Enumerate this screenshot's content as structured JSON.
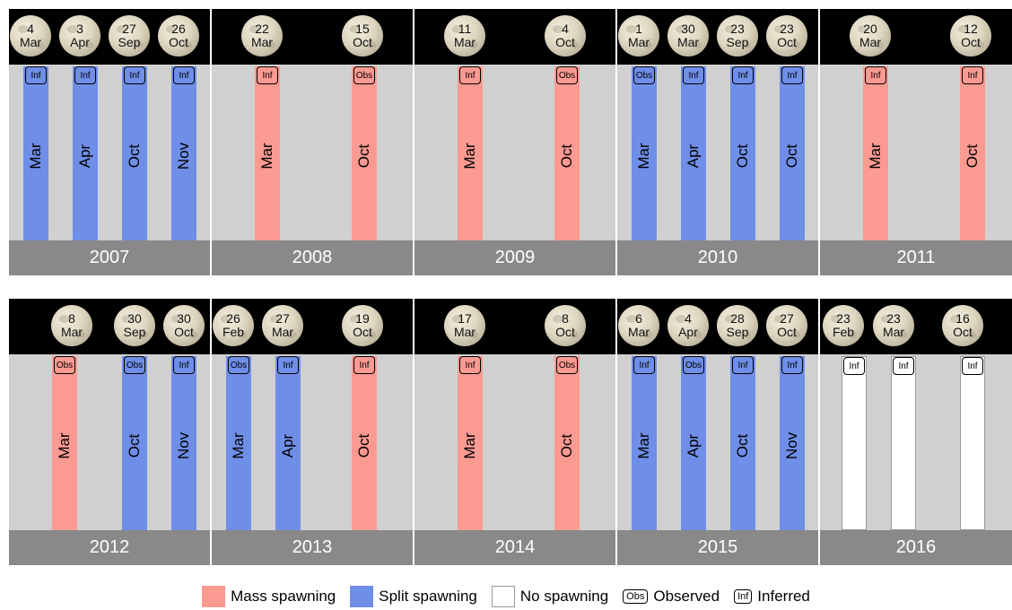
{
  "rows": [
    {
      "panels": [
        {
          "year": "2007",
          "moons": [
            {
              "day": "4",
              "month": "Mar"
            },
            {
              "day": "3",
              "month": "Apr"
            },
            {
              "day": "27",
              "month": "Sep"
            },
            {
              "day": "26",
              "month": "Oct"
            }
          ],
          "bars": [
            {
              "month": "Mar",
              "type": "split",
              "tag": "Inf"
            },
            {
              "month": "Apr",
              "type": "split",
              "tag": "Inf"
            },
            {
              "month": "Oct",
              "type": "split",
              "tag": "Inf"
            },
            {
              "month": "Nov",
              "type": "split",
              "tag": "Inf"
            }
          ]
        },
        {
          "year": "2008",
          "moons": [
            {
              "day": "22",
              "month": "Mar"
            },
            {
              "day": "15",
              "month": "Oct"
            }
          ],
          "bars": [
            {
              "month": "Mar",
              "type": "mass",
              "tag": "Inf"
            },
            {
              "month": "Oct",
              "type": "mass",
              "tag": "Obs"
            }
          ]
        },
        {
          "year": "2009",
          "moons": [
            {
              "day": "11",
              "month": "Mar"
            },
            {
              "day": "4",
              "month": "Oct"
            }
          ],
          "bars": [
            {
              "month": "Mar",
              "type": "mass",
              "tag": "Inf"
            },
            {
              "month": "Oct",
              "type": "mass",
              "tag": "Obs"
            }
          ]
        },
        {
          "year": "2010",
          "moons": [
            {
              "day": "1",
              "month": "Mar"
            },
            {
              "day": "30",
              "month": "Mar"
            },
            {
              "day": "23",
              "month": "Sep"
            },
            {
              "day": "23",
              "month": "Oct"
            }
          ],
          "bars": [
            {
              "month": "Mar",
              "type": "split",
              "tag": "Obs"
            },
            {
              "month": "Apr",
              "type": "split",
              "tag": "Inf"
            },
            {
              "month": "Oct",
              "type": "split",
              "tag": "Inf"
            },
            {
              "month": "Oct",
              "type": "split",
              "tag": "Inf"
            }
          ]
        },
        {
          "year": "2011",
          "moons": [
            {
              "day": "20",
              "month": "Mar"
            },
            {
              "day": "12",
              "month": "Oct"
            }
          ],
          "bars": [
            {
              "month": "Mar",
              "type": "mass",
              "tag": "Inf"
            },
            {
              "month": "Oct",
              "type": "mass",
              "tag": "Inf"
            }
          ]
        }
      ]
    },
    {
      "panels": [
        {
          "year": "2012",
          "moons": [
            {
              "day": "8",
              "month": "Mar"
            },
            {
              "day": "30",
              "month": "Sep"
            },
            {
              "day": "30",
              "month": "Oct"
            }
          ],
          "bars": [
            {
              "month": "Mar",
              "type": "mass",
              "tag": "Obs"
            },
            {
              "month": "Oct",
              "type": "split",
              "tag": "Obs"
            },
            {
              "month": "Nov",
              "type": "split",
              "tag": "Inf"
            }
          ]
        },
        {
          "year": "2013",
          "moons": [
            {
              "day": "26",
              "month": "Feb"
            },
            {
              "day": "27",
              "month": "Mar"
            },
            {
              "day": "19",
              "month": "Oct"
            }
          ],
          "bars": [
            {
              "month": "Mar",
              "type": "split",
              "tag": "Obs"
            },
            {
              "month": "Apr",
              "type": "split",
              "tag": "Inf"
            },
            {
              "month": "Oct",
              "type": "mass",
              "tag": "Inf"
            }
          ]
        },
        {
          "year": "2014",
          "moons": [
            {
              "day": "17",
              "month": "Mar"
            },
            {
              "day": "8",
              "month": "Oct"
            }
          ],
          "bars": [
            {
              "month": "Mar",
              "type": "mass",
              "tag": "Inf"
            },
            {
              "month": "Oct",
              "type": "mass",
              "tag": "Obs"
            }
          ]
        },
        {
          "year": "2015",
          "moons": [
            {
              "day": "6",
              "month": "Mar"
            },
            {
              "day": "4",
              "month": "Apr"
            },
            {
              "day": "28",
              "month": "Sep"
            },
            {
              "day": "27",
              "month": "Oct"
            }
          ],
          "bars": [
            {
              "month": "Mar",
              "type": "split",
              "tag": "Inf"
            },
            {
              "month": "Apr",
              "type": "split",
              "tag": "Obs"
            },
            {
              "month": "Oct",
              "type": "split",
              "tag": "Inf"
            },
            {
              "month": "Nov",
              "type": "split",
              "tag": "Inf"
            }
          ]
        },
        {
          "year": "2016",
          "moons": [
            {
              "day": "23",
              "month": "Feb"
            },
            {
              "day": "23",
              "month": "Mar"
            },
            {
              "day": "16",
              "month": "Oct"
            }
          ],
          "bars": [
            {
              "month": "",
              "type": "none",
              "tag": "Inf"
            },
            {
              "month": "",
              "type": "none",
              "tag": "Inf"
            },
            {
              "month": "",
              "type": "none",
              "tag": "Inf"
            }
          ]
        }
      ]
    }
  ],
  "legend": {
    "mass": "Mass spawning",
    "split": "Split spawning",
    "none": "No spawning",
    "obs_tag": "Obs",
    "obs_label": "Observed",
    "inf_tag": "Inf",
    "inf_label": "Inferred"
  },
  "colors": {
    "mass": "#fb9a91",
    "split": "#6f8ee8",
    "none": "#ffffff"
  }
}
